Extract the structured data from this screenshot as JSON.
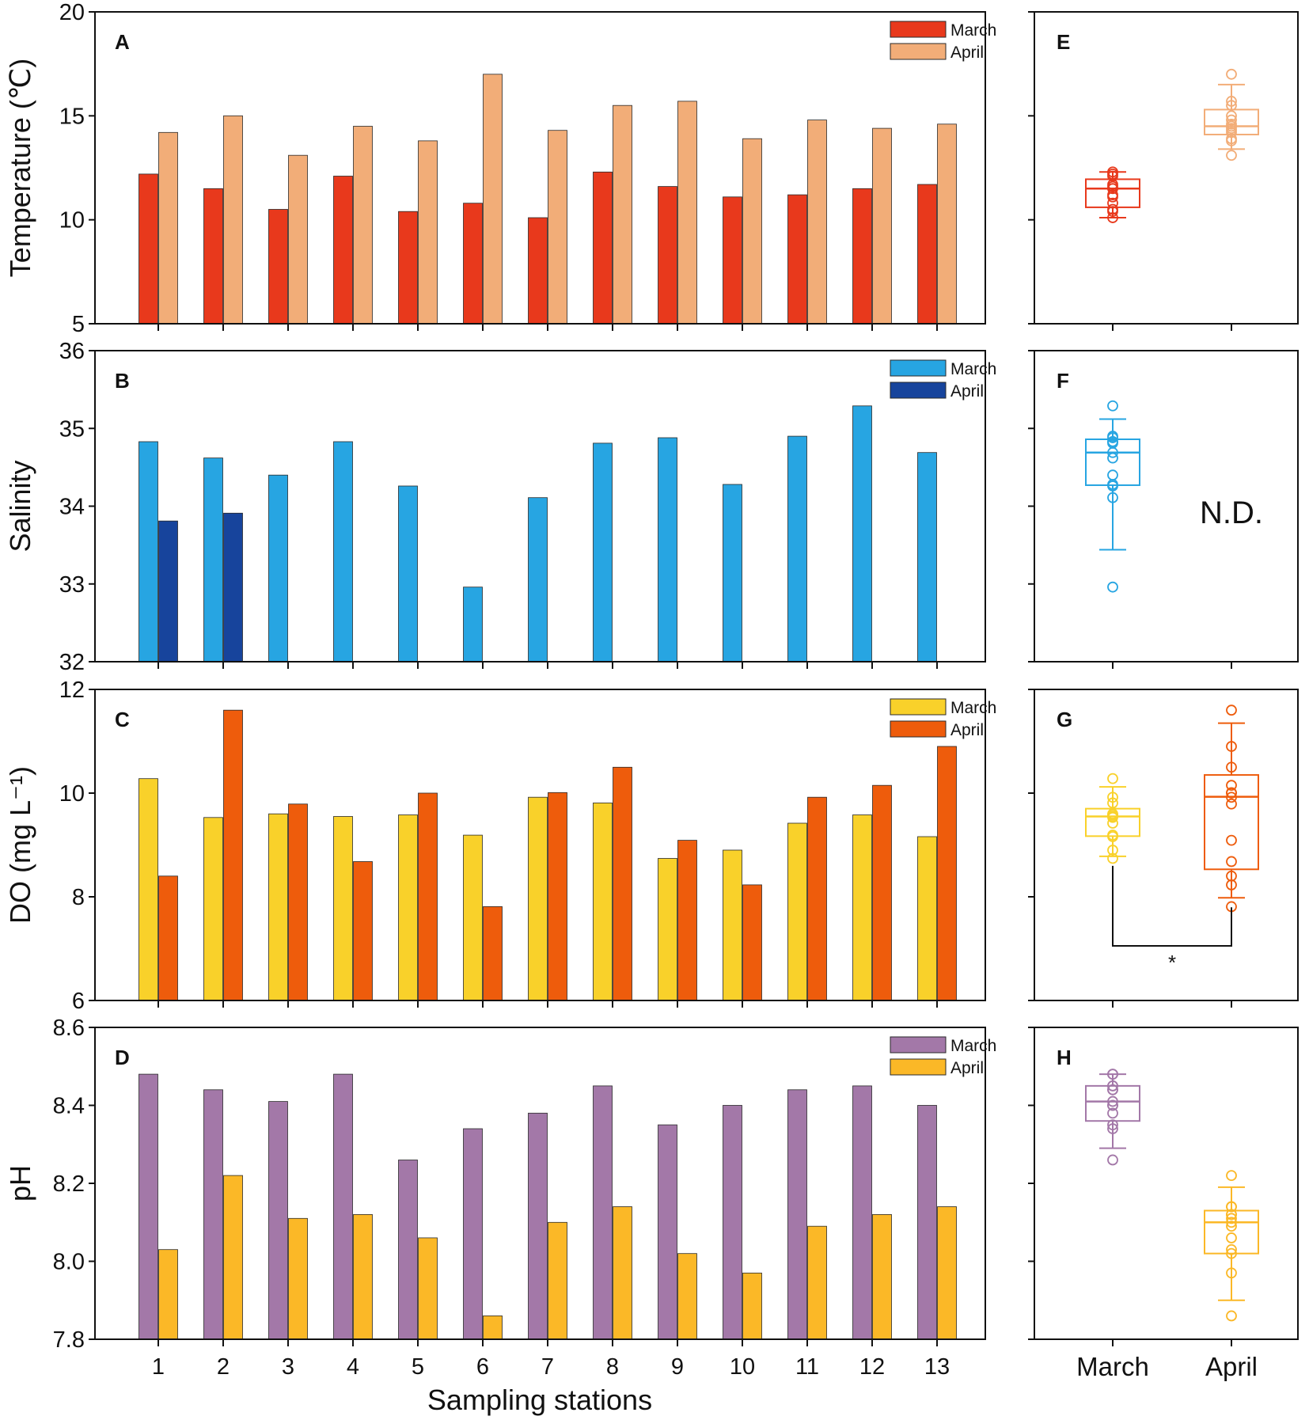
{
  "chart_data": [
    {
      "type": "bar",
      "panel": "A",
      "ylabel": "Temperature (℃)",
      "xlabel": "Sampling stations",
      "ylim": [
        5,
        20
      ],
      "yticks": [
        5,
        10,
        15,
        20
      ],
      "categories": [
        "1",
        "2",
        "3",
        "4",
        "5",
        "6",
        "7",
        "8",
        "9",
        "10",
        "11",
        "12",
        "13"
      ],
      "legend_position": "top-right",
      "series": [
        {
          "name": "March",
          "color": "#e8391c",
          "values": [
            12.2,
            11.5,
            10.5,
            12.1,
            10.4,
            10.8,
            10.1,
            12.3,
            11.6,
            11.1,
            11.2,
            11.5,
            11.7
          ]
        },
        {
          "name": "April",
          "color": "#f2ad78",
          "values": [
            14.2,
            15.0,
            13.1,
            14.5,
            13.8,
            17.0,
            14.3,
            15.5,
            15.7,
            13.9,
            14.8,
            14.4,
            14.6
          ]
        }
      ]
    },
    {
      "type": "bar",
      "panel": "B",
      "ylabel": "Salinity",
      "ylim": [
        32,
        36
      ],
      "yticks": [
        32,
        33,
        34,
        35,
        36
      ],
      "categories": [
        "1",
        "2",
        "3",
        "4",
        "5",
        "6",
        "7",
        "8",
        "9",
        "10",
        "11",
        "12",
        "13"
      ],
      "legend_position": "top-right",
      "series": [
        {
          "name": "March",
          "color": "#27a5e2",
          "values": [
            34.83,
            34.62,
            34.4,
            34.83,
            34.26,
            32.96,
            34.11,
            34.81,
            34.88,
            34.28,
            34.9,
            35.29,
            34.69
          ]
        },
        {
          "name": "April",
          "color": "#17449c",
          "values": [
            33.81,
            33.91,
            null,
            null,
            null,
            null,
            null,
            null,
            null,
            null,
            null,
            null,
            null
          ]
        }
      ]
    },
    {
      "type": "bar",
      "panel": "C",
      "ylabel": "DO (mg L⁻¹)",
      "ylim": [
        6,
        12
      ],
      "yticks": [
        6,
        8,
        10,
        12
      ],
      "categories": [
        "1",
        "2",
        "3",
        "4",
        "5",
        "6",
        "7",
        "8",
        "9",
        "10",
        "11",
        "12",
        "13"
      ],
      "legend_position": "top-right",
      "series": [
        {
          "name": "March",
          "color": "#f9d12a",
          "values": [
            10.28,
            9.53,
            9.6,
            9.55,
            9.58,
            9.19,
            9.92,
            9.81,
            8.74,
            8.9,
            9.42,
            9.58,
            9.16
          ]
        },
        {
          "name": "April",
          "color": "#ee5c0c",
          "values": [
            8.4,
            11.6,
            9.79,
            8.68,
            10.0,
            7.81,
            10.01,
            10.5,
            9.09,
            8.23,
            9.92,
            10.15,
            10.9
          ]
        }
      ]
    },
    {
      "type": "bar",
      "panel": "D",
      "ylabel": "pH",
      "ylim": [
        7.8,
        8.6
      ],
      "yticks": [
        "7.8",
        "8.0",
        "8.2",
        "8.4",
        "8.6"
      ],
      "categories": [
        "1",
        "2",
        "3",
        "4",
        "5",
        "6",
        "7",
        "8",
        "9",
        "10",
        "11",
        "12",
        "13"
      ],
      "legend_position": "top-right",
      "series": [
        {
          "name": "March",
          "color": "#a378a8",
          "values": [
            8.48,
            8.44,
            8.41,
            8.48,
            8.26,
            8.34,
            8.38,
            8.45,
            8.35,
            8.4,
            8.44,
            8.45,
            8.4
          ]
        },
        {
          "name": "April",
          "color": "#fbb827",
          "values": [
            8.03,
            8.22,
            8.11,
            8.12,
            8.06,
            7.86,
            8.1,
            8.14,
            8.02,
            7.97,
            8.09,
            8.12,
            8.14
          ]
        }
      ]
    },
    {
      "type": "box",
      "panel": "E",
      "ylim": [
        5,
        20
      ],
      "categories": [
        "March",
        "April"
      ],
      "boxes": [
        {
          "name": "March",
          "color": "#e8391c",
          "whisker_low": 10.1,
          "q1": 10.6,
          "median": 11.5,
          "q3": 11.95,
          "whisker_high": 12.3,
          "points": [
            12.2,
            11.5,
            10.5,
            12.1,
            10.4,
            10.8,
            10.1,
            12.3,
            11.6,
            11.1,
            11.2,
            11.5,
            11.7
          ]
        },
        {
          "name": "April",
          "color": "#f2ad78",
          "whisker_low": 13.4,
          "q1": 14.1,
          "median": 14.5,
          "q3": 15.3,
          "whisker_high": 16.5,
          "points": [
            14.2,
            15.0,
            13.1,
            14.5,
            13.8,
            17.0,
            14.3,
            15.5,
            15.7,
            13.9,
            14.8,
            14.4,
            14.6
          ]
        }
      ]
    },
    {
      "type": "box",
      "panel": "F",
      "ylim": [
        32,
        36
      ],
      "categories": [
        "March",
        "April"
      ],
      "annotation": "N.D.",
      "boxes": [
        {
          "name": "March",
          "color": "#27a5e2",
          "whisker_low": 33.44,
          "q1": 34.27,
          "median": 34.69,
          "q3": 34.86,
          "whisker_high": 35.12,
          "points": [
            34.83,
            34.62,
            34.4,
            34.83,
            34.26,
            32.96,
            34.11,
            34.81,
            34.88,
            34.28,
            34.9,
            35.29,
            34.69
          ]
        }
      ]
    },
    {
      "type": "box",
      "panel": "G",
      "ylim": [
        6,
        12
      ],
      "categories": [
        "March",
        "April"
      ],
      "significance": "*",
      "boxes": [
        {
          "name": "March",
          "color": "#f9d12a",
          "whisker_low": 8.78,
          "q1": 9.17,
          "median": 9.55,
          "q3": 9.7,
          "whisker_high": 10.12,
          "points": [
            10.28,
            9.53,
            9.6,
            9.55,
            9.58,
            9.19,
            9.92,
            9.81,
            8.74,
            8.9,
            9.42,
            9.58,
            9.16
          ]
        },
        {
          "name": "April",
          "color": "#ee5c0c",
          "whisker_low": 7.98,
          "q1": 8.53,
          "median": 9.93,
          "q3": 10.35,
          "whisker_high": 11.35,
          "points": [
            8.4,
            11.6,
            9.79,
            8.68,
            10.0,
            7.81,
            10.01,
            10.5,
            9.09,
            8.23,
            9.92,
            10.15,
            10.9
          ]
        }
      ]
    },
    {
      "type": "box",
      "panel": "H",
      "ylim": [
        7.8,
        8.6
      ],
      "categories": [
        "March",
        "April"
      ],
      "boxes": [
        {
          "name": "March",
          "color": "#a378a8",
          "whisker_low": 8.29,
          "q1": 8.36,
          "median": 8.41,
          "q3": 8.45,
          "whisker_high": 8.48,
          "points": [
            8.48,
            8.44,
            8.41,
            8.48,
            8.26,
            8.34,
            8.38,
            8.45,
            8.35,
            8.4,
            8.44,
            8.45,
            8.4
          ]
        },
        {
          "name": "April",
          "color": "#fbb827",
          "whisker_low": 7.9,
          "q1": 8.02,
          "median": 8.1,
          "q3": 8.13,
          "whisker_high": 8.19,
          "points": [
            8.03,
            8.22,
            8.11,
            8.12,
            8.06,
            7.86,
            8.1,
            8.14,
            8.02,
            7.97,
            8.09,
            8.12,
            8.14
          ]
        }
      ]
    }
  ]
}
